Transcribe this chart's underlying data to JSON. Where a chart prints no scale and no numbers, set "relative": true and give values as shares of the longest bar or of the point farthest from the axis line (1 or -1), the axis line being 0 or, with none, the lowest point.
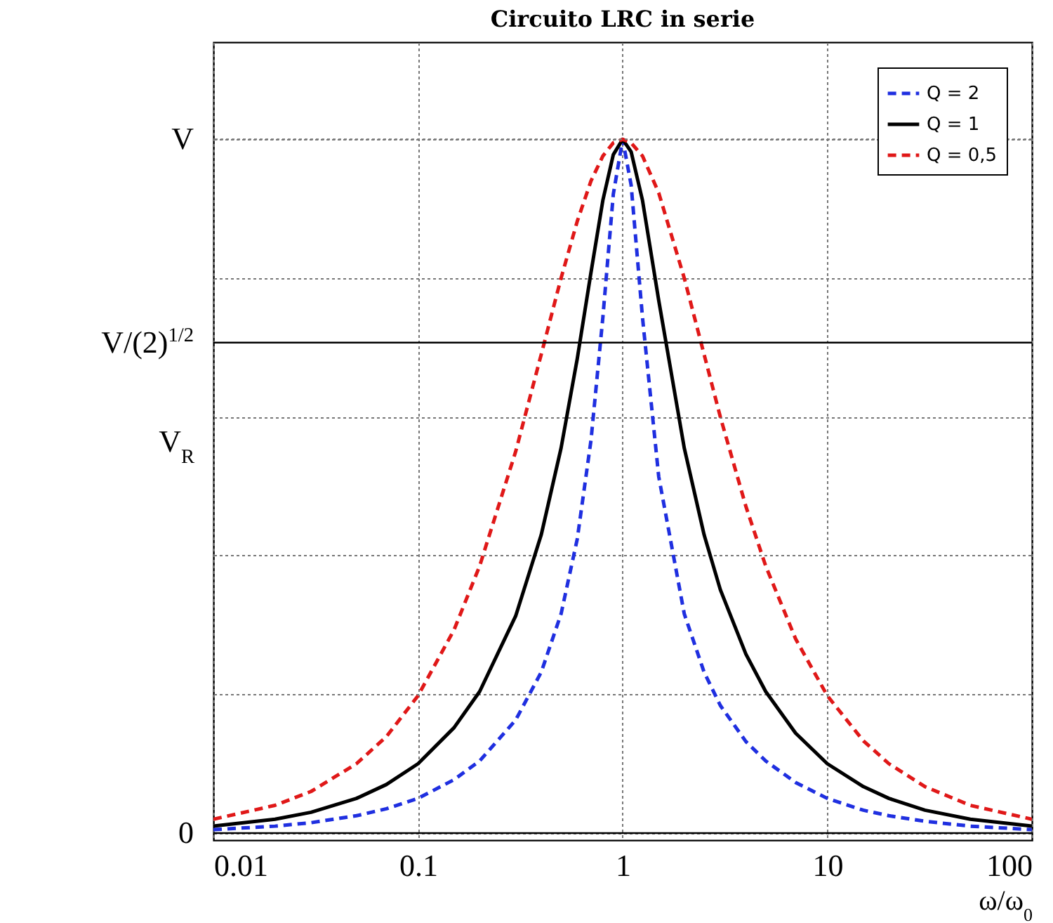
{
  "chart_data": {
    "type": "line",
    "title": "Circuito LRC in serie",
    "xlabel": "ω/ω$_{0}$",
    "log": "x",
    "grid": true,
    "legend": "top right",
    "x": [
      0.01,
      0.02,
      0.03,
      0.05,
      0.07,
      0.1,
      0.15,
      0.2,
      0.3,
      0.4,
      0.5,
      0.6,
      0.7,
      0.8,
      0.9,
      1,
      1.1,
      1.25,
      1.5,
      2,
      2.5,
      3,
      4,
      5,
      7,
      10,
      15,
      20,
      30,
      50,
      100
    ],
    "xlim": [
      0.01,
      100
    ],
    "xticks": [
      0.01,
      0.1,
      1,
      10,
      100
    ],
    "relative": true,
    "ylabel": "V$_{R}$",
    "ref_lines": [
      {
        "axis": "y",
        "value": 0,
        "label": "0",
        "color": "#000000",
        "line_style": "solid"
      },
      {
        "axis": "y",
        "value": 0.707,
        "label": "V/(2)$^{1/2}$",
        "color": "#000000",
        "line_style": "solid"
      },
      {
        "axis": "y",
        "value": 1,
        "label": "V",
        "color": "#777777",
        "line_style": "dotted"
      }
    ],
    "series": [
      {
        "name": "Q = 2",
        "color": "#1f2fe0",
        "line_style": "dashed",
        "values": [
          0.005,
          0.01,
          0.015,
          0.025,
          0.035,
          0.05,
          0.077,
          0.104,
          0.163,
          0.232,
          0.316,
          0.424,
          0.566,
          0.743,
          0.921,
          1,
          0.934,
          0.743,
          0.514,
          0.316,
          0.232,
          0.184,
          0.132,
          0.104,
          0.073,
          0.05,
          0.033,
          0.025,
          0.017,
          0.01,
          0.005
        ]
      },
      {
        "name": "Q = 1",
        "color": "#000000",
        "line_style": "solid",
        "values": [
          0.01,
          0.02,
          0.03,
          0.05,
          0.07,
          0.1,
          0.152,
          0.204,
          0.313,
          0.43,
          0.555,
          0.684,
          0.808,
          0.912,
          0.978,
          1,
          0.982,
          0.912,
          0.768,
          0.555,
          0.43,
          0.351,
          0.258,
          0.204,
          0.144,
          0.1,
          0.067,
          0.05,
          0.033,
          0.02,
          0.01
        ]
      },
      {
        "name": "Q = 0,5",
        "color": "#e01818",
        "line_style": "dashed",
        "values": [
          0.02,
          0.04,
          0.06,
          0.1,
          0.139,
          0.198,
          0.293,
          0.385,
          0.55,
          0.69,
          0.8,
          0.882,
          0.94,
          0.976,
          0.995,
          1,
          0.995,
          0.976,
          0.923,
          0.8,
          0.69,
          0.6,
          0.471,
          0.385,
          0.28,
          0.198,
          0.133,
          0.1,
          0.067,
          0.04,
          0.02
        ]
      }
    ]
  }
}
